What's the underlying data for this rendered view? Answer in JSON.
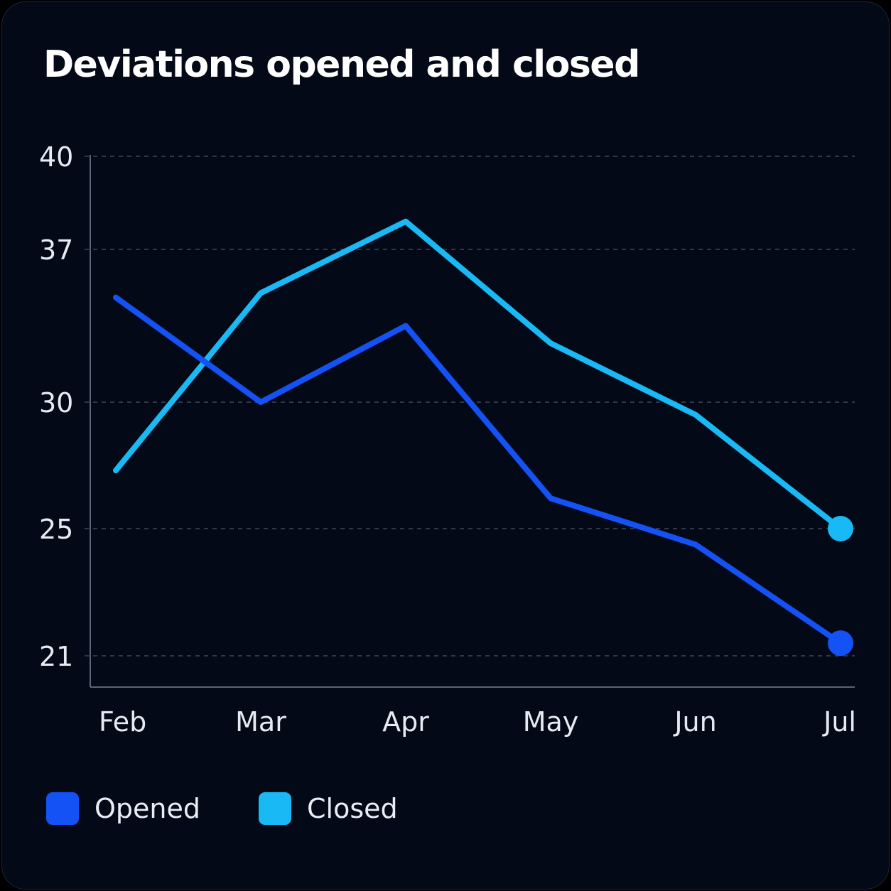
{
  "chart_data": {
    "type": "line",
    "title": "Deviations opened and closed",
    "categories": [
      "Feb",
      "Mar",
      "Apr",
      "May",
      "Jun",
      "Jul"
    ],
    "yticks": [
      21,
      25,
      30,
      37,
      40
    ],
    "ylim": [
      20,
      40
    ],
    "grid": true,
    "legend_position": "bottom-left",
    "series": [
      {
        "name": "Opened",
        "color": "#1552f5",
        "values": [
          34.8,
          30.0,
          33.5,
          26.2,
          24.5,
          21.4
        ]
      },
      {
        "name": "Closed",
        "color": "#18b9f5",
        "values": [
          27.3,
          35.0,
          37.9,
          32.7,
          29.5,
          25.0
        ]
      }
    ]
  }
}
